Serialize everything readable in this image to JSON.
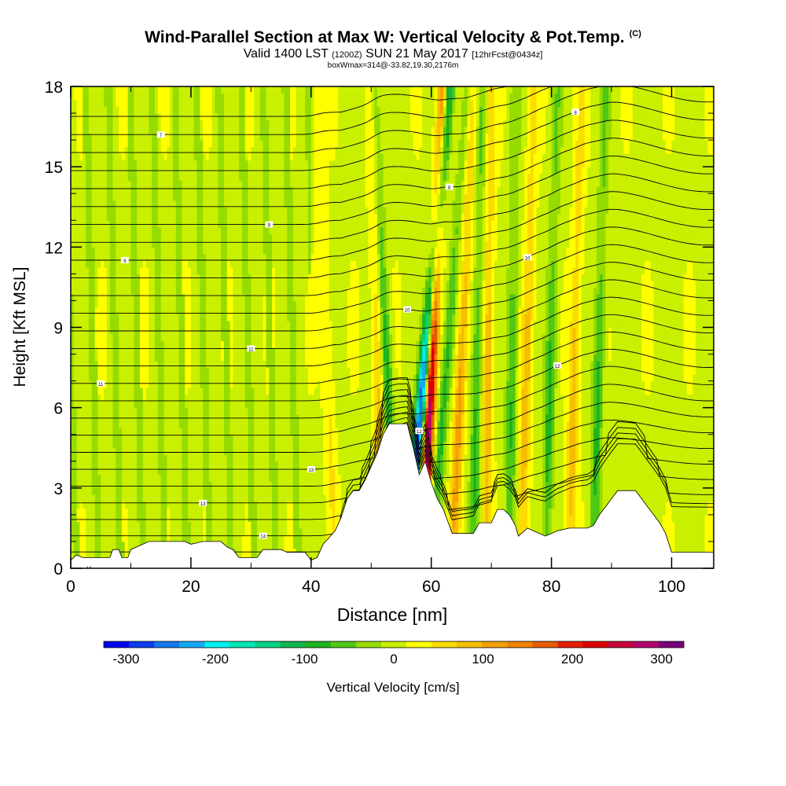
{
  "header": {
    "title": "Wind-Parallel Section at Max W: Vertical Velocity & Pot.Temp.",
    "title_mark": "(C)",
    "valid_prefix": "Valid 1400 LST",
    "valid_utc": "(1200Z)",
    "valid_date": "SUN 21 May 2017",
    "forecast_info": "[12hrFcst@0434z]",
    "box_info": "boxWmax=314@-33.82,19.30,2176m"
  },
  "chart_data": {
    "type": "heatmap",
    "xlabel": "Distance [nm]",
    "ylabel": "Height [Kft MSL]",
    "xlim": [
      0,
      107
    ],
    "ylim": [
      0,
      18
    ],
    "x_ticks": [
      "0",
      "20",
      "40",
      "60",
      "80",
      "100"
    ],
    "y_ticks": [
      "0",
      "3",
      "6",
      "9",
      "12",
      "15",
      "18"
    ],
    "colorbar": {
      "label": "Vertical Velocity [cm/s]",
      "range": [
        -325,
        325
      ],
      "ticks": [
        "-300",
        "-200",
        "-100",
        "0",
        "100",
        "200",
        "300"
      ],
      "colors": [
        "#0000f5",
        "#0a3cf0",
        "#1478f0",
        "#14aaf5",
        "#00f0f0",
        "#00e6b4",
        "#00d282",
        "#14b450",
        "#1eb41e",
        "#50c814",
        "#96dc00",
        "#c8f000",
        "#ffff00",
        "#fadc00",
        "#f5be00",
        "#f5a000",
        "#f08200",
        "#e65a00",
        "#e61e00",
        "#dc0000",
        "#c8003c",
        "#b4006e",
        "#780078"
      ]
    },
    "updraft_bands": [
      {
        "x_base": 58.5,
        "x_top": 62,
        "w_max": 300
      },
      {
        "x_base": 63.5,
        "x_top": 67,
        "w_max": 110
      },
      {
        "x_base": 69,
        "x_top": 70,
        "w_max": 90
      },
      {
        "x_base": 75,
        "x_top": 77,
        "w_max": 80
      },
      {
        "x_base": 83,
        "x_top": 85,
        "w_max": 80
      },
      {
        "x_base": 52,
        "x_top": 50,
        "w_max": 80
      },
      {
        "x_base": 44,
        "x_top": 41,
        "w_max": 40
      }
    ],
    "downdraft_bands": [
      {
        "x_base": 56,
        "x_top": 63,
        "w_min": -300
      },
      {
        "x_base": 54,
        "x_top": 50.5,
        "w_min": -110
      },
      {
        "x_base": 60,
        "x_top": 66,
        "w_min": -90
      },
      {
        "x_base": 67,
        "x_top": 68.5,
        "w_min": -90
      },
      {
        "x_base": 73,
        "x_top": 74,
        "w_min": -80
      },
      {
        "x_base": 79,
        "x_top": 81,
        "w_min": -90
      },
      {
        "x_base": 87,
        "x_top": 89,
        "w_min": -90
      }
    ],
    "terrain_kft": [
      [
        0,
        0.3
      ],
      [
        1,
        0.5
      ],
      [
        2,
        0.4
      ],
      [
        6.5,
        0.4
      ],
      [
        7,
        0.7
      ],
      [
        8,
        0.7
      ],
      [
        8.5,
        0.4
      ],
      [
        9.5,
        0.4
      ],
      [
        10,
        0.7
      ],
      [
        12,
        0.9
      ],
      [
        13,
        1.0
      ],
      [
        19,
        1.0
      ],
      [
        20,
        0.9
      ],
      [
        22,
        1.0
      ],
      [
        25,
        1.0
      ],
      [
        26,
        0.8
      ],
      [
        27,
        0.7
      ],
      [
        28,
        0.4
      ],
      [
        31,
        0.4
      ],
      [
        32,
        0.7
      ],
      [
        35,
        0.7
      ],
      [
        36,
        0.6
      ],
      [
        39,
        0.6
      ],
      [
        40,
        0.3
      ],
      [
        41,
        0.4
      ],
      [
        42,
        0.9
      ],
      [
        44,
        1.4
      ],
      [
        45,
        1.9
      ],
      [
        46,
        2.6
      ],
      [
        47,
        2.9
      ],
      [
        48,
        2.9
      ],
      [
        49,
        3.3
      ],
      [
        50,
        3.8
      ],
      [
        51,
        4.3
      ],
      [
        52,
        5.0
      ],
      [
        53,
        5.4
      ],
      [
        56,
        5.4
      ],
      [
        57,
        4.5
      ],
      [
        58,
        3.5
      ],
      [
        59,
        4.0
      ],
      [
        60,
        3.2
      ],
      [
        61,
        2.6
      ],
      [
        62,
        2.2
      ],
      [
        63,
        1.6
      ],
      [
        63.5,
        1.3
      ],
      [
        67,
        1.3
      ],
      [
        68,
        1.7
      ],
      [
        70,
        1.7
      ],
      [
        71,
        2.2
      ],
      [
        72,
        2.2
      ],
      [
        73,
        2.0
      ],
      [
        74,
        1.6
      ],
      [
        74.5,
        1.2
      ],
      [
        75,
        1.3
      ],
      [
        76,
        1.5
      ],
      [
        78,
        1.3
      ],
      [
        79,
        1.2
      ],
      [
        80,
        1.3
      ],
      [
        81,
        1.4
      ],
      [
        83,
        1.5
      ],
      [
        86,
        1.5
      ],
      [
        87,
        1.6
      ],
      [
        88,
        2.0
      ],
      [
        89,
        2.3
      ],
      [
        90,
        2.6
      ],
      [
        91,
        2.9
      ],
      [
        94,
        2.9
      ],
      [
        95,
        2.6
      ],
      [
        96,
        2.3
      ],
      [
        97,
        2.0
      ],
      [
        98,
        1.7
      ],
      [
        99,
        1.3
      ],
      [
        100,
        0.6
      ],
      [
        102,
        0.6
      ],
      [
        104,
        0.6
      ],
      [
        107,
        0.6
      ]
    ],
    "isentropes": {
      "count": 28,
      "surface_kft": [
        0.6,
        18.0
      ],
      "contour_labels": [
        "14",
        "14",
        "13",
        "13",
        "12",
        "12",
        "11",
        "11",
        "10",
        "10",
        "9",
        "9",
        "8",
        "8",
        "7"
      ]
    },
    "grid": false
  }
}
